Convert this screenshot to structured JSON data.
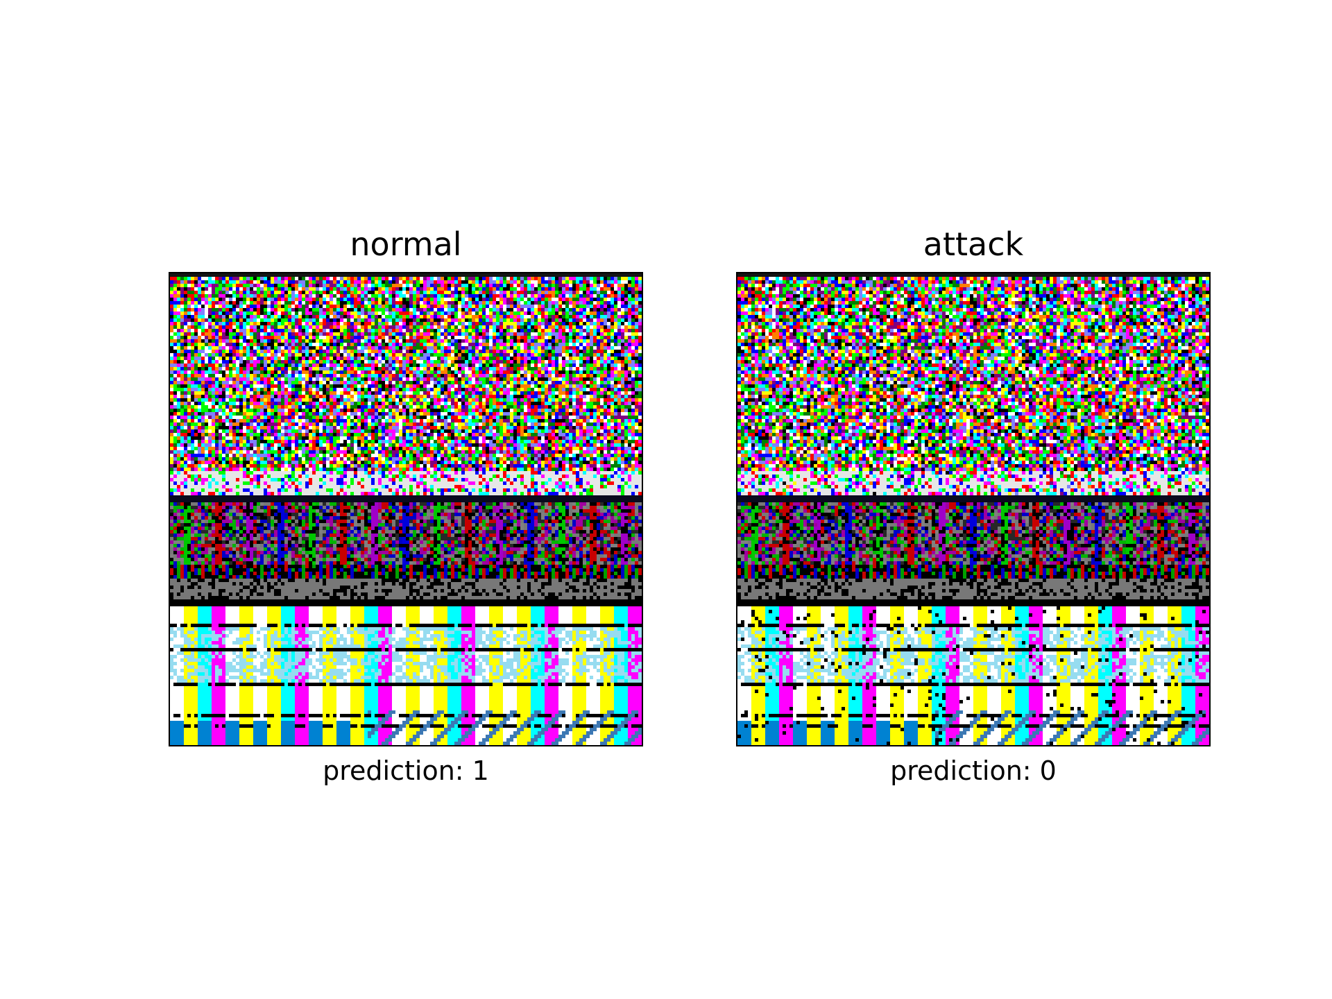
{
  "chart_data": [
    {
      "type": "image",
      "title": "normal",
      "xlabel": "prediction: 1",
      "xticks": false,
      "yticks": false,
      "seed": 7
    },
    {
      "type": "image",
      "title": "attack",
      "xlabel": "prediction: 0",
      "xticks": false,
      "yticks": false,
      "seed": 7
    }
  ]
}
